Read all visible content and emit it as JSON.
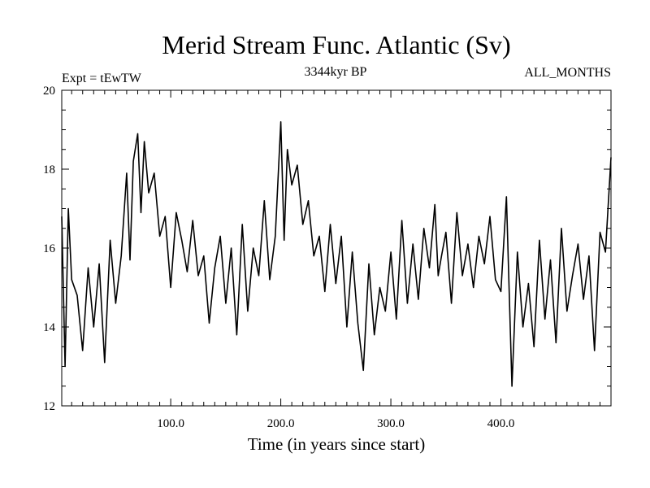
{
  "chart_data": {
    "type": "line",
    "title": "Merid Stream Func. Atlantic (Sv)",
    "subtitle_left": "Expt = tEwTW",
    "subtitle_center": "3344kyr BP",
    "subtitle_right": "ALL_MONTHS",
    "xlabel": "Time (in years since start)",
    "ylabel": "",
    "xlim": [
      1,
      500
    ],
    "ylim": [
      12,
      20
    ],
    "x_ticks": [
      100,
      200,
      300,
      400
    ],
    "x_tick_labels": [
      "100.0",
      "200.0",
      "300.0",
      "400.0"
    ],
    "y_ticks": [
      12,
      14,
      16,
      18,
      20
    ],
    "y_tick_labels": [
      "12",
      "14",
      "16",
      "18",
      "20"
    ],
    "grid": false,
    "series": [
      {
        "name": "Merid Stream Func. Atlantic",
        "x": [
          1,
          4,
          7,
          10,
          15,
          20,
          25,
          30,
          35,
          40,
          45,
          50,
          55,
          60,
          63,
          66,
          70,
          73,
          76,
          80,
          85,
          90,
          95,
          100,
          105,
          110,
          115,
          120,
          125,
          130,
          135,
          140,
          145,
          150,
          155,
          160,
          165,
          170,
          175,
          180,
          185,
          190,
          195,
          200,
          203,
          206,
          210,
          215,
          220,
          225,
          230,
          235,
          240,
          245,
          250,
          255,
          260,
          265,
          270,
          275,
          280,
          285,
          290,
          295,
          300,
          305,
          310,
          315,
          320,
          325,
          330,
          335,
          340,
          343,
          346,
          350,
          355,
          360,
          365,
          370,
          375,
          380,
          385,
          390,
          395,
          400,
          405,
          410,
          415,
          420,
          425,
          430,
          435,
          440,
          445,
          450,
          455,
          460,
          465,
          470,
          475,
          480,
          485,
          490,
          495,
          500
        ],
        "values": [
          16.8,
          13.0,
          17.0,
          15.2,
          14.8,
          13.4,
          15.5,
          14.0,
          15.6,
          13.1,
          16.2,
          14.6,
          15.8,
          17.9,
          15.7,
          18.2,
          18.9,
          16.9,
          18.7,
          17.4,
          17.9,
          16.3,
          16.8,
          15.0,
          16.9,
          16.2,
          15.4,
          16.7,
          15.3,
          15.8,
          14.1,
          15.5,
          16.3,
          14.6,
          16.0,
          13.8,
          16.6,
          14.4,
          16.0,
          15.3,
          17.2,
          15.2,
          16.3,
          19.2,
          16.2,
          18.5,
          17.6,
          18.1,
          16.6,
          17.2,
          15.8,
          16.3,
          14.9,
          16.6,
          15.1,
          16.3,
          14.0,
          15.9,
          14.1,
          12.9,
          15.6,
          13.8,
          15.0,
          14.4,
          15.9,
          14.2,
          16.7,
          14.6,
          16.1,
          14.7,
          16.5,
          15.5,
          17.1,
          15.3,
          15.8,
          16.4,
          14.6,
          16.9,
          15.3,
          16.1,
          15.0,
          16.3,
          15.6,
          16.8,
          15.2,
          14.9,
          17.3,
          12.5,
          15.9,
          14.0,
          15.1,
          13.5,
          16.2,
          14.2,
          15.7,
          13.6,
          16.5,
          14.4,
          15.3,
          16.1,
          14.7,
          15.8,
          13.4,
          16.4,
          15.9,
          18.3
        ]
      }
    ]
  }
}
